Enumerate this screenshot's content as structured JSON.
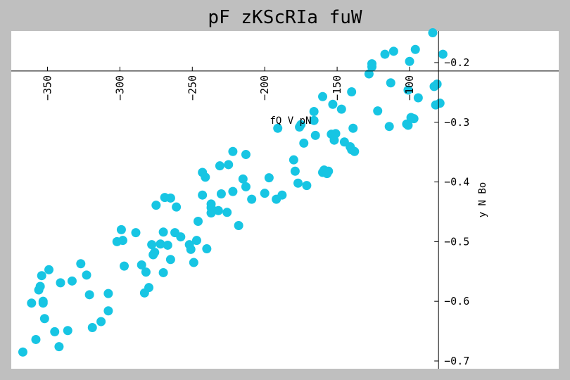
{
  "chart_data": {
    "type": "scatter",
    "title": "pF zKScRIa fuW",
    "xlabel": "fQ V pN",
    "ylabel": "y N Bo",
    "xlim": [
      -375,
      3
    ],
    "ylim": [
      -0.713,
      -0.147
    ],
    "x_axis_at_y": -0.214,
    "y_axis_at_x": -80,
    "x_ticks": [
      -350,
      -300,
      -250,
      -200,
      -150,
      -100
    ],
    "x_tick_labels": [
      "−350",
      "−300",
      "−250",
      "−200",
      "−150",
      "−100"
    ],
    "y_ticks": [
      -0.2,
      -0.3,
      -0.4,
      -0.5,
      -0.6,
      -0.7
    ],
    "y_tick_labels": [
      "−0.2",
      "−0.3",
      "−0.4",
      "−0.5",
      "−0.6",
      "−0.7"
    ],
    "grid": false,
    "marker_color": "#17c5e3",
    "series": [
      {
        "points": [
          [
            -367,
            -0.685
          ],
          [
            -361,
            -0.603
          ],
          [
            -358,
            -0.664
          ],
          [
            -356,
            -0.581
          ],
          [
            -355,
            -0.575
          ],
          [
            -354,
            -0.557
          ],
          [
            -353,
            -0.6
          ],
          [
            -353,
            -0.603
          ],
          [
            -352,
            -0.629
          ],
          [
            -349,
            -0.547
          ],
          [
            -345,
            -0.651
          ],
          [
            -342,
            -0.676
          ],
          [
            -341,
            -0.569
          ],
          [
            -336,
            -0.649
          ],
          [
            -333,
            -0.566
          ],
          [
            -327,
            -0.537
          ],
          [
            -323,
            -0.556
          ],
          [
            -321,
            -0.589
          ],
          [
            -319,
            -0.644
          ],
          [
            -313,
            -0.634
          ],
          [
            -308,
            -0.587
          ],
          [
            -308,
            -0.616
          ],
          [
            -302,
            -0.5
          ],
          [
            -299,
            -0.48
          ],
          [
            -298,
            -0.498
          ],
          [
            -297,
            -0.541
          ],
          [
            -289,
            -0.485
          ],
          [
            -285,
            -0.539
          ],
          [
            -283,
            -0.586
          ],
          [
            -282,
            -0.551
          ],
          [
            -280,
            -0.577
          ],
          [
            -278,
            -0.505
          ],
          [
            -277,
            -0.522
          ],
          [
            -276,
            -0.518
          ],
          [
            -275,
            -0.439
          ],
          [
            -272,
            -0.504
          ],
          [
            -270,
            -0.552
          ],
          [
            -270,
            -0.484
          ],
          [
            -269,
            -0.426
          ],
          [
            -267,
            -0.506
          ],
          [
            -265,
            -0.53
          ],
          [
            -265,
            -0.427
          ],
          [
            -262,
            -0.485
          ],
          [
            -261,
            -0.442
          ],
          [
            -258,
            -0.492
          ],
          [
            -252,
            -0.505
          ],
          [
            -251,
            -0.513
          ],
          [
            -249,
            -0.535
          ],
          [
            -247,
            -0.498
          ],
          [
            -246,
            -0.466
          ],
          [
            -243,
            -0.422
          ],
          [
            -243,
            -0.384
          ],
          [
            -241,
            -0.392
          ],
          [
            -240,
            -0.512
          ],
          [
            -237,
            -0.443
          ],
          [
            -237,
            -0.452
          ],
          [
            -237,
            -0.437
          ],
          [
            -232,
            -0.448
          ],
          [
            -231,
            -0.373
          ],
          [
            -230,
            -0.42
          ],
          [
            -226,
            -0.451
          ],
          [
            -225,
            -0.371
          ],
          [
            -222,
            -0.416
          ],
          [
            -222,
            -0.349
          ],
          [
            -218,
            -0.473
          ],
          [
            -215,
            -0.395
          ],
          [
            -213,
            -0.408
          ],
          [
            -213,
            -0.354
          ],
          [
            -209,
            -0.429
          ],
          [
            -200,
            -0.419
          ],
          [
            -197,
            -0.393
          ],
          [
            -192,
            -0.429
          ],
          [
            -191,
            -0.31
          ],
          [
            -188,
            -0.422
          ],
          [
            -180,
            -0.363
          ],
          [
            -179,
            -0.382
          ],
          [
            -177,
            -0.402
          ],
          [
            -176,
            -0.308
          ],
          [
            -175,
            -0.304
          ],
          [
            -173,
            -0.335
          ],
          [
            -171,
            -0.406
          ],
          [
            -166,
            -0.282
          ],
          [
            -166,
            -0.297
          ],
          [
            -165,
            -0.322
          ],
          [
            -160,
            -0.384
          ],
          [
            -160,
            -0.257
          ],
          [
            -159,
            -0.38
          ],
          [
            -157,
            -0.386
          ],
          [
            -156,
            -0.382
          ],
          [
            -154,
            -0.32
          ],
          [
            -153,
            -0.27
          ],
          [
            -152,
            -0.33
          ],
          [
            -151,
            -0.319
          ],
          [
            -147,
            -0.278
          ],
          [
            -145,
            -0.333
          ],
          [
            -141,
            -0.341
          ],
          [
            -140,
            -0.346
          ],
          [
            -140,
            -0.249
          ],
          [
            -139,
            -0.31
          ],
          [
            -138,
            -0.349
          ],
          [
            -128,
            -0.219
          ],
          [
            -126,
            -0.207
          ],
          [
            -126,
            -0.202
          ],
          [
            -122,
            -0.281
          ],
          [
            -117,
            -0.186
          ],
          [
            -114,
            -0.307
          ],
          [
            -113,
            -0.234
          ],
          [
            -111,
            -0.181
          ],
          [
            -102,
            -0.303
          ],
          [
            -101,
            -0.305
          ],
          [
            -101,
            -0.246
          ],
          [
            -100,
            -0.198
          ],
          [
            -99,
            -0.292
          ],
          [
            -97,
            -0.294
          ],
          [
            -96,
            -0.178
          ],
          [
            -94,
            -0.259
          ],
          [
            -84,
            -0.15
          ],
          [
            -83,
            -0.24
          ],
          [
            -82,
            -0.271
          ],
          [
            -81,
            -0.236
          ],
          [
            -79,
            -0.268
          ],
          [
            -77,
            -0.186
          ]
        ]
      }
    ]
  }
}
